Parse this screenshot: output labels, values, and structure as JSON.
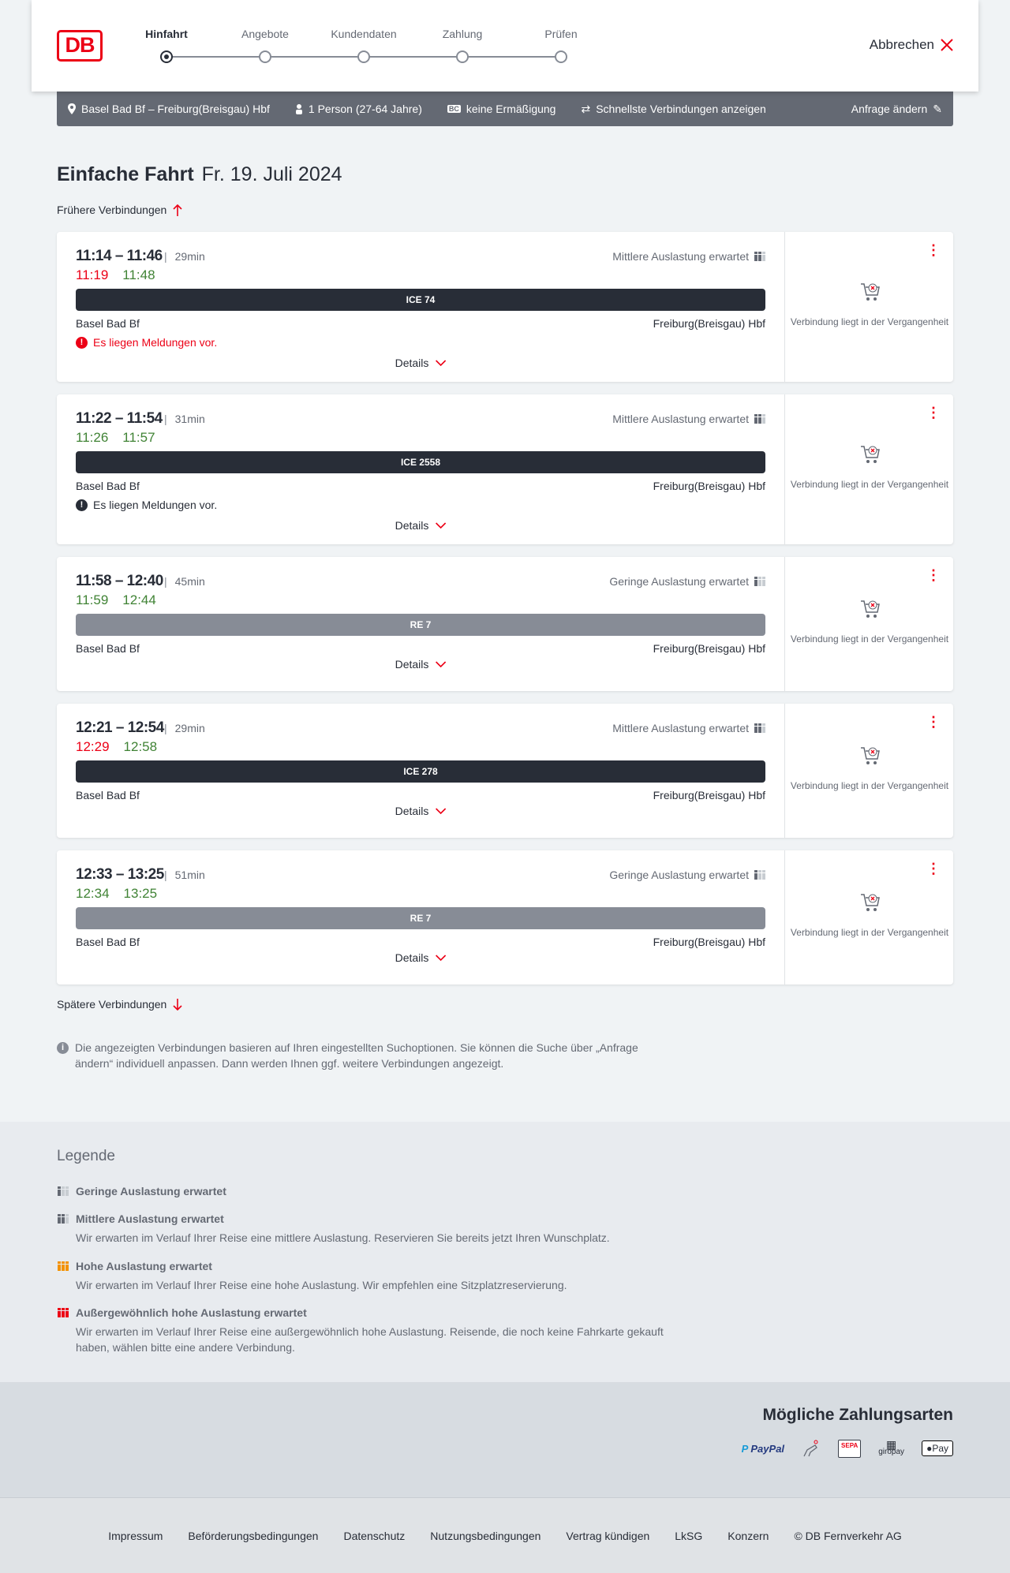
{
  "logo": "DB",
  "steps": [
    {
      "label": "Hinfahrt",
      "active": true
    },
    {
      "label": "Angebote"
    },
    {
      "label": "Kundendaten"
    },
    {
      "label": "Zahlung"
    },
    {
      "label": "Prüfen"
    }
  ],
  "cancel_label": "Abbrechen",
  "infobar": {
    "route": "Basel Bad Bf – Freiburg(Breisgau) Hbf",
    "persons": "1 Person (27-64 Jahre)",
    "bc_badge": "BC",
    "discount": "keine Ermäßigung",
    "fastest": "Schnellste Verbindungen anzeigen",
    "edit": "Anfrage ändern"
  },
  "title": {
    "type": "Einfache Fahrt",
    "date": "Fr. 19. Juli 2024"
  },
  "earlier": "Frühere Verbindungen",
  "later": "Spätere Verbindungen",
  "details_label": "Details",
  "past_label": "Verbindung liegt in der Vergangenheit",
  "connections": [
    {
      "time": "11:14 – 11:46",
      "duration": "29min",
      "rt_dep": "11:19",
      "rt_dep_color": "red",
      "rt_arr": "11:48",
      "rt_arr_color": "green",
      "load": "Mittlere Auslastung erwartet",
      "load_level": 2,
      "train": "ICE 74",
      "train_color": "#282d37",
      "from": "Basel Bad Bf",
      "to": "Freiburg(Breisgau) Hbf",
      "message": "Es liegen Meldungen vor.",
      "message_color": "#ec0016"
    },
    {
      "time": "11:22 – 11:54",
      "duration": "31min",
      "rt_dep": "11:26",
      "rt_dep_color": "green",
      "rt_arr": "11:57",
      "rt_arr_color": "green",
      "load": "Mittlere Auslastung erwartet",
      "load_level": 2,
      "train": "ICE 2558",
      "train_color": "#282d37",
      "from": "Basel Bad Bf",
      "to": "Freiburg(Breisgau) Hbf",
      "message": "Es liegen Meldungen vor.",
      "message_color": "#282d37"
    },
    {
      "time": "11:58 – 12:40",
      "duration": "45min",
      "rt_dep": "11:59",
      "rt_dep_color": "green",
      "rt_arr": "12:44",
      "rt_arr_color": "green",
      "load": "Geringe Auslastung erwartet",
      "load_level": 1,
      "train": "RE 7",
      "train_color": "#878c96",
      "from": "Basel Bad Bf",
      "to": "Freiburg(Breisgau) Hbf"
    },
    {
      "time": "12:21 – 12:54",
      "duration": "29min",
      "rt_dep": "12:29",
      "rt_dep_color": "red",
      "rt_arr": "12:58",
      "rt_arr_color": "green",
      "load": "Mittlere Auslastung erwartet",
      "load_level": 2,
      "train": "ICE 278",
      "train_color": "#282d37",
      "from": "Basel Bad Bf",
      "to": "Freiburg(Breisgau) Hbf"
    },
    {
      "time": "12:33 – 13:25",
      "duration": "51min",
      "rt_dep": "12:34",
      "rt_dep_color": "green",
      "rt_arr": "13:25",
      "rt_arr_color": "green",
      "load": "Geringe Auslastung erwartet",
      "load_level": 1,
      "train": "RE 7",
      "train_color": "#878c96",
      "from": "Basel Bad Bf",
      "to": "Freiburg(Breisgau) Hbf"
    }
  ],
  "info_note": "Die angezeigten Verbindungen basieren auf Ihren eingestellten Suchoptionen. Sie können die Suche über „Anfrage ändern“ individuell anpassen. Dann werden Ihnen ggf. weitere Verbindungen angezeigt.",
  "legend": {
    "title": "Legende",
    "items": [
      {
        "title": "Geringe Auslastung erwartet",
        "icon": "load-low-icon"
      },
      {
        "title": "Mittlere Auslastung erwartet",
        "desc": "Wir erwarten im Verlauf Ihrer Reise eine mittlere Auslastung. Reservieren Sie bereits jetzt Ihren Wunschplatz.",
        "icon": "load-medium-icon"
      },
      {
        "title": "Hohe Auslastung erwartet",
        "desc": "Wir erwarten im Verlauf Ihrer Reise eine hohe Auslastung. Wir empfehlen eine Sitzplatzreservierung.",
        "icon": "load-high-icon",
        "color": "#f39200"
      },
      {
        "title": "Außergewöhnlich hohe Auslastung erwartet",
        "desc": "Wir erwarten im Verlauf Ihrer Reise eine außergewöhnlich hohe Auslastung. Reisende, die noch keine Fahrkarte gekauft haben, wählen bitte eine andere Verbindung.",
        "icon": "load-extreme-icon",
        "color": "#ec0016"
      }
    ]
  },
  "payment": {
    "title": "Mögliche Zahlungsarten",
    "methods": [
      "PayPal",
      "SEPA",
      "giropay",
      "Pay"
    ]
  },
  "footer": [
    "Impressum",
    "Beförderungsbedingungen",
    "Datenschutz",
    "Nutzungsbedingungen",
    "Vertrag kündigen",
    "LkSG",
    "Konzern",
    "© DB Fernverkehr AG"
  ],
  "colors": {
    "brand": "#ec0016",
    "delay": "#ec0016",
    "ontime": "#408335",
    "dark": "#282d37"
  }
}
